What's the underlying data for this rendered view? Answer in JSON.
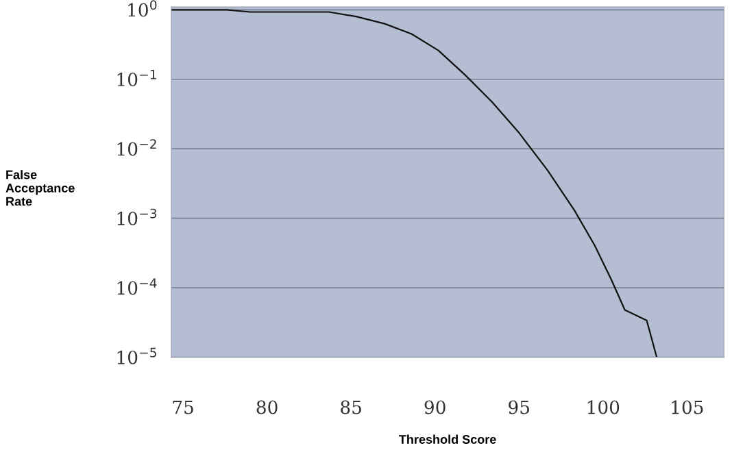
{
  "chart_data": {
    "type": "line",
    "xlabel": "Threshold Score",
    "ylabel": "False\nAcceptance\nRate",
    "log": "y",
    "grid": "y",
    "marker": "none",
    "line_style": "solid",
    "xlim": [
      74.3,
      107.2
    ],
    "xticks": [
      75,
      80,
      85,
      90,
      95,
      100,
      105
    ],
    "ylim": [
      1e-05,
      1.1
    ],
    "yticks": [
      {
        "value": 1,
        "label": "10$^{0}$"
      },
      {
        "value": 0.1,
        "label": "10$^{−1}$"
      },
      {
        "value": 0.01,
        "label": "10$^{−2}$"
      },
      {
        "value": 0.001,
        "label": "10$^{−3}$"
      },
      {
        "value": 0.0001,
        "label": "10$^{−4}$"
      },
      {
        "value": 1e-05,
        "label": "10$^{−5}$"
      }
    ],
    "series": [
      {
        "color": "#111111",
        "x": [
          74.3,
          77.6,
          79.0,
          83.7,
          85.3,
          87.0,
          88.6,
          90.2,
          91.8,
          93.4,
          95.0,
          96.7,
          98.3,
          99.5,
          100.5,
          101.3,
          102.6,
          103.2
        ],
        "values": [
          1,
          1,
          0.93,
          0.93,
          0.8,
          0.63,
          0.45,
          0.26,
          0.115,
          0.047,
          0.017,
          0.0049,
          0.0013,
          0.00041,
          0.00013,
          4.8e-05,
          3.4e-05,
          1e-05
        ]
      }
    ]
  }
}
